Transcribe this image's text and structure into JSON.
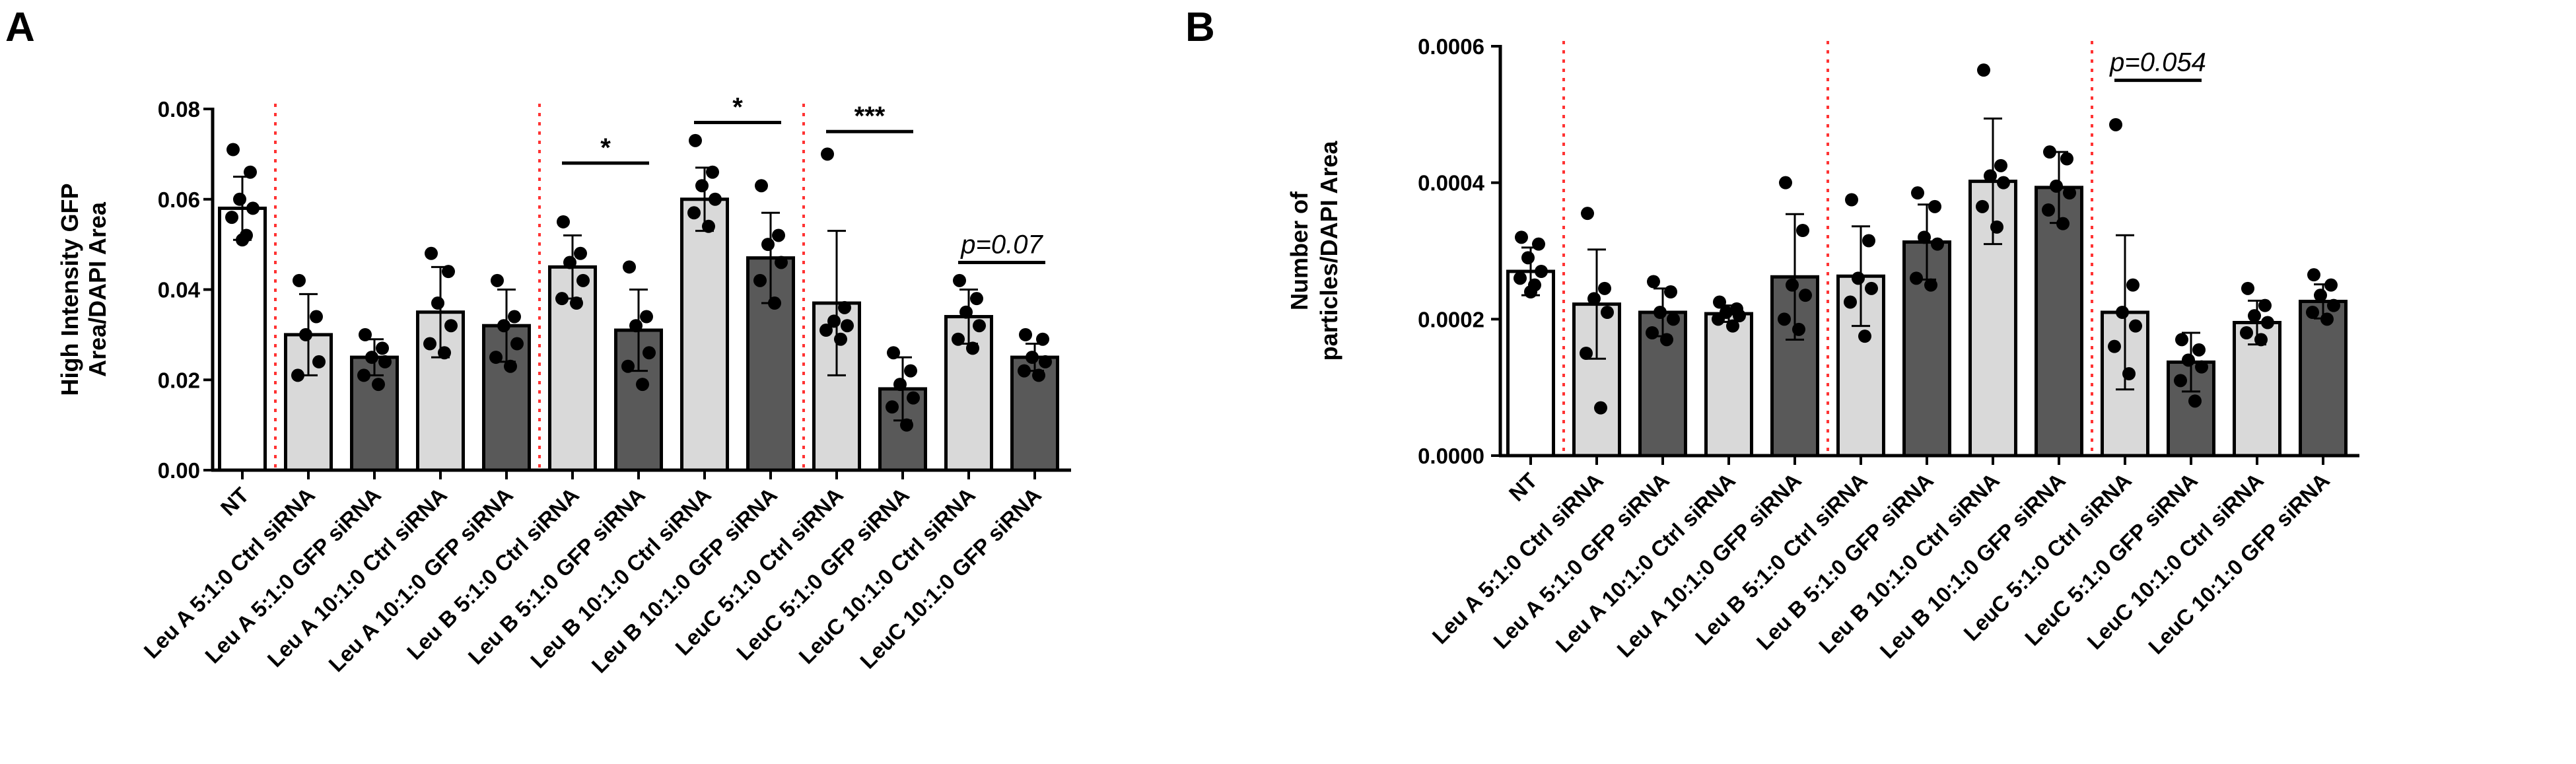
{
  "chart_data": [
    {
      "panel": "A",
      "type": "bar",
      "ylabel": "High Intensity GFP Area/DAPI Area",
      "ylabel_lines": [
        "High Intensity GFP",
        "Area/DAPI Area"
      ],
      "ylim": [
        0,
        0.08
      ],
      "yticks": [
        "0.00",
        "0.02",
        "0.04",
        "0.06",
        "0.08"
      ],
      "categories": [
        "NT",
        "Leu A 5:1:0 Ctrl siRNA",
        "Leu A 5:1:0 GFP siRNA",
        "Leu A 10:1:0 Ctrl siRNA",
        "Leu A 10:1:0 GFP siRNA",
        "Leu B 5:1:0 Ctrl siRNA",
        "Leu B 5:1:0 GFP siRNA",
        "Leu B 10:1:0 Ctrl siRNA",
        "Leu B 10:1:0 GFP siRNA",
        "LeuC 5:1:0 Ctrl siRNA",
        "LeuC 5:1:0 GFP siRNA",
        "LeuC 10:1:0 Ctrl siRNA",
        "LeuC 10:1:0 GFP siRNA"
      ],
      "values": [
        0.058,
        0.03,
        0.025,
        0.035,
        0.032,
        0.045,
        0.031,
        0.06,
        0.047,
        0.037,
        0.018,
        0.034,
        0.025
      ],
      "errors": [
        0.007,
        0.009,
        0.004,
        0.01,
        0.008,
        0.007,
        0.009,
        0.007,
        0.01,
        0.016,
        0.007,
        0.006,
        0.003
      ],
      "bar_colors": [
        "#ffffff",
        "#d9d9d9",
        "#595959",
        "#d9d9d9",
        "#595959",
        "#d9d9d9",
        "#595959",
        "#d9d9d9",
        "#595959",
        "#d9d9d9",
        "#595959",
        "#d9d9d9",
        "#595959"
      ],
      "points": [
        [
          0.071,
          0.066,
          0.06,
          0.058,
          0.056,
          0.052,
          0.051
        ],
        [
          0.042,
          0.034,
          0.03,
          0.024,
          0.021
        ],
        [
          0.03,
          0.027,
          0.025,
          0.024,
          0.021,
          0.019
        ],
        [
          0.048,
          0.044,
          0.037,
          0.032,
          0.028,
          0.026
        ],
        [
          0.042,
          0.034,
          0.032,
          0.028,
          0.025,
          0.023
        ],
        [
          0.055,
          0.048,
          0.046,
          0.042,
          0.038,
          0.037
        ],
        [
          0.045,
          0.034,
          0.032,
          0.026,
          0.023,
          0.019
        ],
        [
          0.073,
          0.066,
          0.063,
          0.06,
          0.057,
          0.054
        ],
        [
          0.063,
          0.052,
          0.05,
          0.046,
          0.042,
          0.037
        ],
        [
          0.07,
          0.036,
          0.033,
          0.032,
          0.031,
          0.029
        ],
        [
          0.026,
          0.022,
          0.019,
          0.016,
          0.014,
          0.01
        ],
        [
          0.042,
          0.038,
          0.035,
          0.032,
          0.029,
          0.027
        ],
        [
          0.03,
          0.029,
          0.025,
          0.024,
          0.022,
          0.021
        ]
      ],
      "separators_after": [
        0,
        4,
        8
      ],
      "significance": [
        {
          "from": 5,
          "to": 6,
          "label": "*",
          "value": 0.068
        },
        {
          "from": 7,
          "to": 8,
          "label": "*",
          "value": 0.077
        },
        {
          "from": 9,
          "to": 10,
          "label": "***",
          "value": 0.075
        },
        {
          "from": 11,
          "to": 12,
          "label": "p=0.07",
          "value": 0.046,
          "italic": true
        }
      ]
    },
    {
      "panel": "B",
      "type": "bar",
      "ylabel": "Number of particles/DAPI Area",
      "ylabel_lines": [
        "Number of",
        "particles/DAPI Area"
      ],
      "ylim": [
        0,
        0.0006
      ],
      "yticks": [
        "0.0000",
        "0.0002",
        "0.0004",
        "0.0006"
      ],
      "categories": [
        "NT",
        "Leu A 5:1:0 Ctrl siRNA",
        "Leu A 5:1:0 GFP siRNA",
        "Leu A 10:1:0 Ctrl siRNA",
        "Leu A 10:1:0 GFP siRNA",
        "Leu B 5:1:0 Ctrl siRNA",
        "Leu B 5:1:0 GFP siRNA",
        "Leu B 10:1:0 Ctrl siRNA",
        "Leu B 10:1:0 GFP siRNA",
        "LeuC 5:1:0 Ctrl siRNA",
        "LeuC 5:1:0 GFP siRNA",
        "LeuC 10:1:0 Ctrl siRNA",
        "LeuC 10:1:0 GFP siRNA"
      ],
      "values": [
        0.00027,
        0.000222,
        0.00021,
        0.000208,
        0.000262,
        0.000263,
        0.000313,
        0.000402,
        0.000393,
        0.00021,
        0.000137,
        0.000195,
        0.000226
      ],
      "errors": [
        3.5e-05,
        8e-05,
        3.5e-05,
        1.2e-05,
        9.2e-05,
        7.3e-05,
        5.5e-05,
        9.2e-05,
        5.2e-05,
        0.000113,
        4.3e-05,
        3.2e-05,
        2.5e-05
      ],
      "bar_colors": [
        "#ffffff",
        "#d9d9d9",
        "#595959",
        "#d9d9d9",
        "#595959",
        "#d9d9d9",
        "#595959",
        "#d9d9d9",
        "#595959",
        "#d9d9d9",
        "#595959",
        "#d9d9d9",
        "#595959"
      ],
      "points": [
        [
          0.00032,
          0.00031,
          0.00029,
          0.00027,
          0.00026,
          0.00025,
          0.00024
        ],
        [
          0.000355,
          0.000245,
          0.00023,
          0.00021,
          0.00015,
          7e-05
        ],
        [
          0.000255,
          0.00024,
          0.00021,
          0.0002,
          0.00018,
          0.00017
        ],
        [
          0.000225,
          0.000215,
          0.00021,
          0.000205,
          0.0002,
          0.00019
        ],
        [
          0.0004,
          0.00033,
          0.00025,
          0.000235,
          0.0002,
          0.000185
        ],
        [
          0.000375,
          0.000315,
          0.00026,
          0.000245,
          0.000225,
          0.000175
        ],
        [
          0.000385,
          0.000365,
          0.00032,
          0.00031,
          0.00026,
          0.00025
        ],
        [
          0.000565,
          0.000425,
          0.00041,
          0.0004,
          0.000365,
          0.000335
        ],
        [
          0.000445,
          0.000435,
          0.000395,
          0.000385,
          0.00036,
          0.00034
        ],
        [
          0.000485,
          0.00025,
          0.00021,
          0.00019,
          0.00016,
          0.00012
        ],
        [
          0.00017,
          0.000155,
          0.00014,
          0.00013,
          0.00011,
          8e-05
        ],
        [
          0.000245,
          0.00022,
          0.000205,
          0.000195,
          0.00018,
          0.00017
        ],
        [
          0.000265,
          0.00025,
          0.000235,
          0.00022,
          0.00021,
          0.0002
        ]
      ],
      "separators_after": [
        0,
        4,
        8
      ],
      "significance": [
        {
          "from": 9,
          "to": 10,
          "label": "p=0.054",
          "value": 0.00055,
          "italic": true
        }
      ]
    }
  ]
}
